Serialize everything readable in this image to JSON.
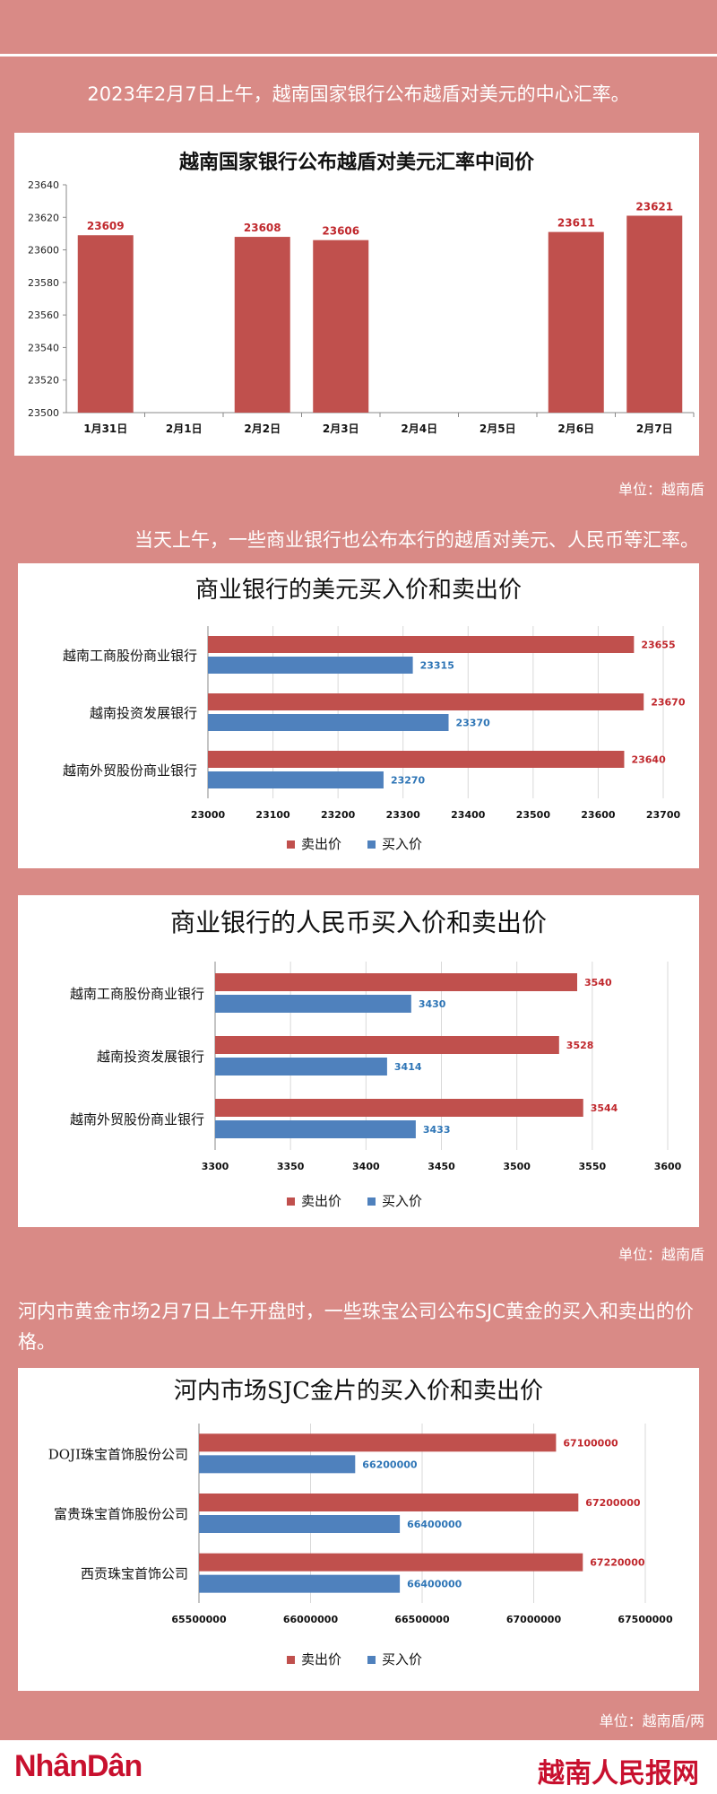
{
  "intro1": "2023年2月7日上午，越南国家银行公布越盾对美元的中心汇率。",
  "unit1": "单位：越南盾",
  "intro2": "当天上午，一些商业银行也公布本行的越盾对美元、人民币等汇率。",
  "unit2": "单位：越南盾",
  "intro3": "河内市黄金市场2月7日上午开盘时，一些珠宝公司公布SJC黄金的买入和卖出的价格。",
  "unit3": "单位：越南盾/两",
  "logo_left": "NhânDân",
  "logo_right": "越南人民报网",
  "colors": {
    "sell": "#c0504d",
    "buy": "#4f81bd",
    "sell_text": "#c0282d",
    "buy_text": "#2e75b6"
  },
  "chart_data": [
    {
      "type": "bar",
      "title": "越南国家银行公布越盾对美元汇率中间价",
      "categories": [
        "1月31日",
        "2月1日",
        "2月2日",
        "2月3日",
        "2月4日",
        "2月5日",
        "2月6日",
        "2月7日"
      ],
      "values": [
        23609,
        null,
        23608,
        23606,
        null,
        null,
        23611,
        23621
      ],
      "ylim": [
        23500,
        23640
      ],
      "yticks": [
        23500,
        23520,
        23540,
        23560,
        23580,
        23600,
        23620,
        23640
      ],
      "grid": false
    },
    {
      "type": "bar",
      "orientation": "horizontal",
      "title": "商业银行的美元买入价和卖出价",
      "categories": [
        "越南工商股份商业银行",
        "越南投资发展银行",
        "越南外贸股份商业银行"
      ],
      "series": [
        {
          "name": "卖出价",
          "values": [
            23655,
            23670,
            23640
          ]
        },
        {
          "name": "买入价",
          "values": [
            23315,
            23370,
            23270
          ]
        }
      ],
      "xlim": [
        23000,
        23700
      ],
      "xticks": [
        23000,
        23100,
        23200,
        23300,
        23400,
        23500,
        23600,
        23700
      ],
      "legend": "bottom",
      "grid": true
    },
    {
      "type": "bar",
      "orientation": "horizontal",
      "title": "商业银行的人民币买入价和卖出价",
      "categories": [
        "越南工商股份商业银行",
        "越南投资发展银行",
        "越南外贸股份商业银行"
      ],
      "series": [
        {
          "name": "卖出价",
          "values": [
            3540,
            3528,
            3544
          ]
        },
        {
          "name": "买入价",
          "values": [
            3430,
            3414,
            3433
          ]
        }
      ],
      "xlim": [
        3300,
        3600
      ],
      "xticks": [
        3300,
        3350,
        3400,
        3450,
        3500,
        3550,
        3600
      ],
      "legend": "bottom",
      "grid": true
    },
    {
      "type": "bar",
      "orientation": "horizontal",
      "title": "河内市场SJC金片的买入价和卖出价",
      "categories": [
        "DOJI珠宝首饰股份公司",
        "富贵珠宝首饰股份公司",
        "西贡珠宝首饰公司"
      ],
      "series": [
        {
          "name": "卖出价",
          "values": [
            67100000,
            67200000,
            67220000
          ]
        },
        {
          "name": "买入价",
          "values": [
            66200000,
            66400000,
            66400000
          ]
        }
      ],
      "xlim": [
        65500000,
        67500000
      ],
      "xticks": [
        65500000,
        66000000,
        66500000,
        67000000,
        67500000
      ],
      "legend": "bottom",
      "grid": true
    }
  ]
}
